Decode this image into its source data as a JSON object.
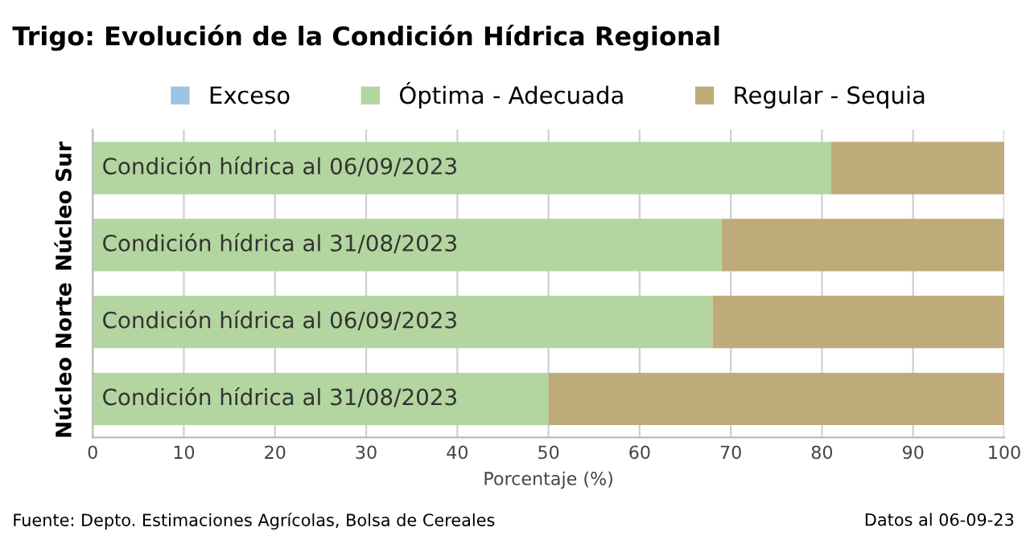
{
  "chart_data": {
    "type": "bar",
    "orientation": "horizontal",
    "stacked": true,
    "title": "Trigo: Evolución de la Condición Hídrica Regional",
    "xlabel": "Porcentaje (%)",
    "categories": [
      "Condición hídrica al 06/09/2023",
      "Condición hídrica al 31/08/2023",
      "Condición hídrica al 06/09/2023",
      "Condición hídrica al 31/08/2023"
    ],
    "series": [
      {
        "name": "Exceso",
        "color": "#9dc3e6",
        "values": [
          0,
          0,
          0,
          0
        ]
      },
      {
        "name": "Óptima - Adecuada",
        "color": "#b3d6a0",
        "values": [
          81,
          69,
          68,
          50
        ]
      },
      {
        "name": "Regular - Sequia",
        "color": "#bfab7a",
        "values": [
          19,
          31,
          32,
          50
        ]
      }
    ],
    "xlim": [
      0,
      100
    ],
    "xticks": [
      0,
      10,
      20,
      30,
      40,
      50,
      60,
      70,
      80,
      90,
      100
    ],
    "grid": "x",
    "legend": "top",
    "annotations": [
      "Núcleo Sur",
      "Núcleo Norte",
      "Fuente: Depto. Estimaciones Agrícolas, Bolsa de Cereales",
      "Datos al 06-09-23"
    ]
  }
}
